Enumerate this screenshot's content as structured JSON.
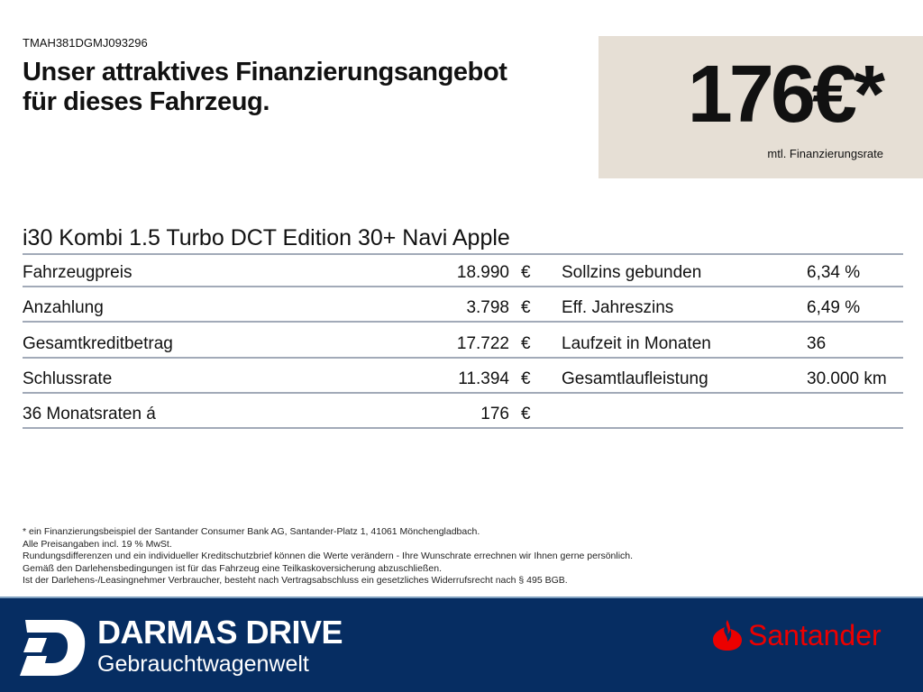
{
  "vin": "TMAH381DGMJ093296",
  "headline": [
    "Unser attraktives Finanzierungsangebot",
    "für dieses Fahrzeug."
  ],
  "price": {
    "value": "176€*",
    "label": "mtl. Finanzierungsrate"
  },
  "model": "i30 Kombi 1.5 Turbo DCT Edition 30+ Navi Apple",
  "rows": [
    {
      "label": "Fahrzeugpreis",
      "value": "18.990",
      "currency": "€",
      "label2": "Sollzins gebunden",
      "value2": "6,34 %"
    },
    {
      "label": "Anzahlung",
      "value": "3.798",
      "currency": "€",
      "label2": "Eff. Jahreszins",
      "value2": "6,49 %"
    },
    {
      "label": "Gesamtkreditbetrag",
      "value": "17.722",
      "currency": "€",
      "label2": "Laufzeit in Monaten",
      "value2": "36"
    },
    {
      "label": "Schlussrate",
      "value": "11.394",
      "currency": "€",
      "label2": "Gesamtlaufleistung",
      "value2": "30.000 km"
    },
    {
      "label": "36 Monatsraten á",
      "value": "176",
      "currency": "€",
      "label2": "",
      "value2": ""
    }
  ],
  "notes": [
    "* ein Finanzierungsbeispiel der Santander Consumer Bank AG, Santander-Platz 1, 41061 Mönchengladbach.",
    "Alle Preisangaben incl. 19 % MwSt.",
    "Rundungsdifferenzen und ein individueller Kreditschutzbrief können die Werte verändern - Ihre Wunschrate errechnen wir Ihnen gerne persönlich.",
    "Gemäß den Darlehensbedingungen ist für das Fahrzeug eine Teilkaskoversicherung abzuschließen.",
    "Ist der Darlehens-/Leasingnehmer Verbraucher, besteht nach Vertragsabschluss ein gesetzliches Widerrufsrecht nach § 495 BGB."
  ],
  "footer": {
    "brand": "DARMAS DRIVE",
    "subtitle": "Gebrauchtwagenwelt",
    "partner": "Santander",
    "colors": {
      "bg": "#062d62",
      "partner": "#ec0000",
      "pricebox": "#e6dfd5"
    }
  }
}
